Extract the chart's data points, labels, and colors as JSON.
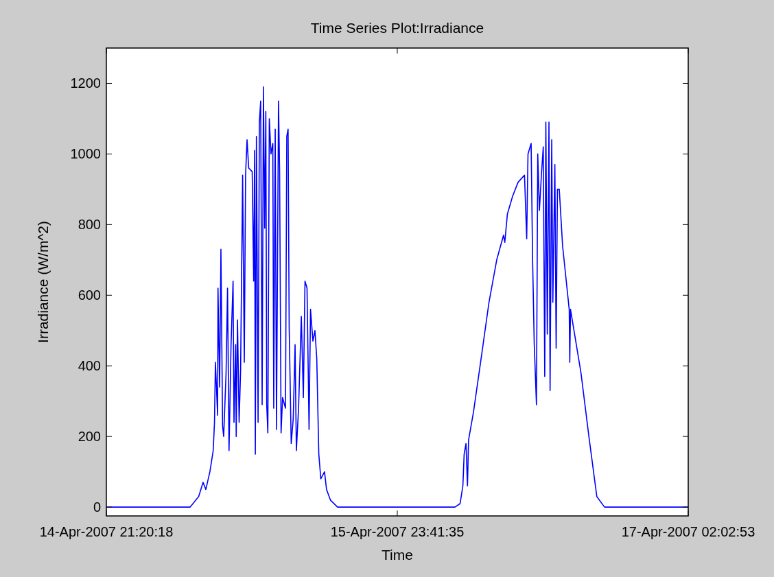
{
  "chart_data": {
    "type": "line",
    "title": "Time Series Plot:Irradiance",
    "xlabel": "Time",
    "ylabel": "Irradiance (W/m^2)",
    "xlim": [
      "2007-04-14T21:20:18",
      "2007-04-17T02:02:53"
    ],
    "xticks": [
      {
        "value": "2007-04-14T21:20:18",
        "label": "14-Apr-2007 21:20:18"
      },
      {
        "value": "2007-04-15T23:41:35",
        "label": "15-Apr-2007 23:41:35"
      },
      {
        "value": "2007-04-17T02:02:53",
        "label": "17-Apr-2007 02:02:53"
      }
    ],
    "ylim": [
      -25,
      1300
    ],
    "yticks": [
      0,
      200,
      400,
      600,
      800,
      1000,
      1200
    ],
    "grid": false,
    "marker": "none",
    "line_style": "solid",
    "series": [
      {
        "color": "#0000ff",
        "x": [
          "2007-04-14T21:21",
          "2007-04-15T04:55",
          "2007-04-15T05:42",
          "2007-04-15T06:06",
          "2007-04-15T06:21",
          "2007-04-15T06:43",
          "2007-04-15T07:01",
          "2007-04-15T07:08",
          "2007-04-15T07:13",
          "2007-04-15T07:25",
          "2007-04-15T07:27",
          "2007-04-15T07:36",
          "2007-04-15T07:43",
          "2007-04-15T07:52",
          "2007-04-15T07:58",
          "2007-04-15T08:11",
          "2007-04-15T08:19",
          "2007-04-15T08:27",
          "2007-04-15T08:38",
          "2007-04-15T08:49",
          "2007-04-15T08:54",
          "2007-04-15T09:03",
          "2007-04-15T09:06",
          "2007-04-15T09:13",
          "2007-04-15T09:22",
          "2007-04-15T09:30",
          "2007-04-15T09:41",
          "2007-04-15T09:50",
          "2007-04-15T09:57",
          "2007-04-15T10:05",
          "2007-04-15T10:14",
          "2007-04-15T10:33",
          "2007-04-15T10:41",
          "2007-04-15T10:46",
          "2007-04-15T10:50",
          "2007-04-15T10:56",
          "2007-04-15T11:05",
          "2007-04-15T11:12",
          "2007-04-15T11:19",
          "2007-04-15T11:27",
          "2007-04-15T11:34",
          "2007-04-15T11:41",
          "2007-04-15T11:47",
          "2007-04-15T11:52",
          "2007-04-15T11:58",
          "2007-04-15T12:06",
          "2007-04-15T12:15",
          "2007-04-15T12:25",
          "2007-04-15T12:30",
          "2007-04-15T12:38",
          "2007-04-15T12:45",
          "2007-04-15T12:56",
          "2007-04-15T13:02",
          "2007-04-15T13:10",
          "2007-04-15T13:18",
          "2007-04-15T13:34",
          "2007-04-15T13:41",
          "2007-04-15T13:48",
          "2007-04-15T13:54",
          "2007-04-15T14:05",
          "2007-04-15T14:16",
          "2007-04-15T14:26",
          "2007-04-15T14:33",
          "2007-04-15T14:45",
          "2007-04-15T15:00",
          "2007-04-15T15:11",
          "2007-04-15T15:20",
          "2007-04-15T15:31",
          "2007-04-15T15:42",
          "2007-04-15T15:50",
          "2007-04-15T16:03",
          "2007-04-15T16:14",
          "2007-04-15T16:24",
          "2007-04-15T16:35",
          "2007-04-15T16:46",
          "2007-04-15T17:06",
          "2007-04-15T17:17",
          "2007-04-15T17:38",
          "2007-04-15T18:17",
          "2007-04-16T04:55",
          "2007-04-16T05:23",
          "2007-04-16T05:38",
          "2007-04-16T05:45",
          "2007-04-16T05:55",
          "2007-04-16T06:03",
          "2007-04-16T06:09",
          "2007-04-16T06:36",
          "2007-04-16T07:17",
          "2007-04-16T08:00",
          "2007-04-16T08:42",
          "2007-04-16T09:19",
          "2007-04-16T09:26",
          "2007-04-16T09:40",
          "2007-04-16T10:08",
          "2007-04-16T10:38",
          "2007-04-16T11:13",
          "2007-04-16T11:25",
          "2007-04-16T11:32",
          "2007-04-16T11:49",
          "2007-04-16T11:57",
          "2007-04-16T12:06",
          "2007-04-16T12:18",
          "2007-04-16T12:25",
          "2007-04-16T12:34",
          "2007-04-16T12:46",
          "2007-04-16T12:55",
          "2007-04-16T13:03",
          "2007-04-16T13:09",
          "2007-04-16T13:17",
          "2007-04-16T13:26",
          "2007-04-16T13:32",
          "2007-04-16T13:41",
          "2007-04-16T13:47",
          "2007-04-16T13:58",
          "2007-04-16T14:05",
          "2007-04-16T14:12",
          "2007-04-16T14:22",
          "2007-04-16T14:40",
          "2007-04-16T15:16",
          "2007-04-16T15:19",
          "2007-04-16T15:23",
          "2007-04-16T16:20",
          "2007-04-16T17:03",
          "2007-04-16T17:46",
          "2007-04-16T18:28",
          "2007-04-17T02:02"
        ],
        "values": [
          0,
          0,
          30,
          70,
          50,
          100,
          160,
          240,
          410,
          260,
          620,
          340,
          730,
          230,
          200,
          380,
          620,
          160,
          460,
          640,
          240,
          460,
          200,
          530,
          240,
          390,
          940,
          410,
          940,
          1040,
          960,
          950,
          640,
          1010,
          150,
          1050,
          240,
          1090,
          1150,
          290,
          1190,
          790,
          1120,
          290,
          210,
          1100,
          1000,
          1030,
          280,
          1070,
          220,
          1150,
          950,
          210,
          310,
          280,
          1050,
          1070,
          510,
          180,
          250,
          460,
          160,
          280,
          540,
          310,
          640,
          620,
          220,
          560,
          470,
          500,
          420,
          150,
          80,
          100,
          50,
          20,
          0,
          0,
          10,
          60,
          150,
          180,
          60,
          190,
          270,
          420,
          580,
          700,
          770,
          750,
          830,
          880,
          920,
          940,
          760,
          1000,
          1030,
          700,
          460,
          290,
          1000,
          840,
          950,
          1020,
          370,
          1090,
          490,
          1090,
          330,
          1040,
          580,
          970,
          450,
          900,
          900,
          740,
          560,
          410,
          560,
          380,
          200,
          30,
          0,
          0
        ]
      }
    ]
  }
}
